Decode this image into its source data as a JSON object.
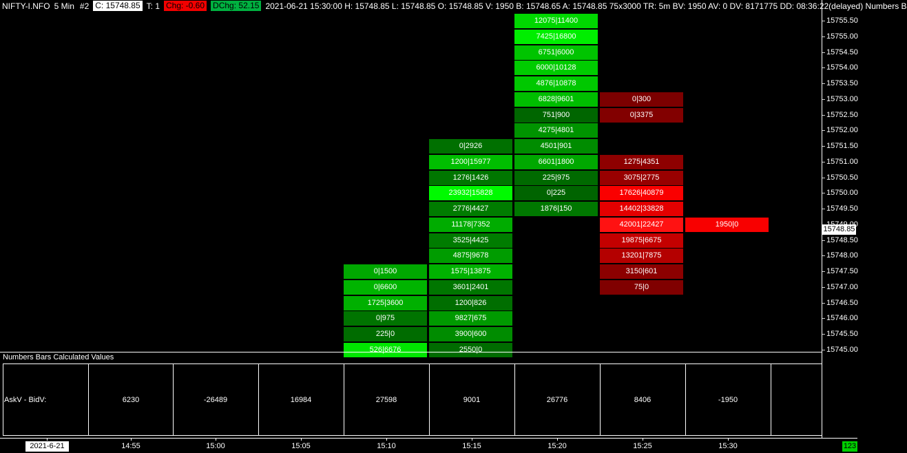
{
  "header": {
    "symbol": "NIFTY-I.NFO",
    "period": "5 Min",
    "chart_number": "#2",
    "close": "C: 15748.85",
    "trades": "T: 1",
    "change": "Chg: -0.60",
    "day_change": "DChg: 52.15",
    "info": "2021-06-21 15:30:00 H: 15748.85 L: 15748.85 O: 15748.85 V: 1950 B: 15748.65 A: 15748.85 75x3000 TR: 5m BV: 1950 AV: 0 DV: 8171775 DD: 08:36:22(delayed) Numbers B"
  },
  "colors": {
    "header_close_bg": "#ffffff",
    "header_change_bg": "#f20000",
    "header_day_change_bg": "#00b140",
    "badge_bg": "#00cf00",
    "up_bright": "#00fa00",
    "down_bright": "#fa0000"
  },
  "price_scale": {
    "labels": [
      "15755.50",
      "15755.00",
      "15754.50",
      "15754.00",
      "15753.50",
      "15753.00",
      "15752.50",
      "15752.00",
      "15751.50",
      "15751.00",
      "15750.50",
      "15750.00",
      "15749.50",
      "15749.00",
      "15748.50",
      "15748.00",
      "15747.50",
      "15747.00",
      "15746.50",
      "15746.00",
      "15745.50",
      "15745.00"
    ],
    "last_price": "15748.85"
  },
  "chart_data": {
    "type": "footprint-bid-ask",
    "value_format": "bidVolume|askVolume",
    "price_range": [
      "15745.00",
      "15755.50"
    ],
    "columns": [
      {
        "time": "15:10",
        "cells": [
          {
            "price": "15747.50",
            "value": "0|1500",
            "color": "#00a800"
          },
          {
            "price": "15747.00",
            "value": "0|6600",
            "color": "#00b400"
          },
          {
            "price": "15746.50",
            "value": "1725|3600",
            "color": "#00b000"
          },
          {
            "price": "15746.00",
            "value": "0|975",
            "color": "#007400"
          },
          {
            "price": "15745.50",
            "value": "225|0",
            "color": "#006c00"
          },
          {
            "price": "15745.00",
            "value": "526|6676",
            "color": "#00e600"
          }
        ]
      },
      {
        "time": "15:15",
        "cells": [
          {
            "price": "15751.50",
            "value": "0|2926",
            "color": "#007000"
          },
          {
            "price": "15751.00",
            "value": "1200|15977",
            "color": "#00be00"
          },
          {
            "price": "15750.50",
            "value": "1276|1426",
            "color": "#007600"
          },
          {
            "price": "15750.00",
            "value": "23932|15828",
            "color": "#00fa00"
          },
          {
            "price": "15749.50",
            "value": "2776|4427",
            "color": "#007c00"
          },
          {
            "price": "15749.00",
            "value": "11178|7352",
            "color": "#00ac00"
          },
          {
            "price": "15748.50",
            "value": "3525|4425",
            "color": "#007c00"
          },
          {
            "price": "15748.00",
            "value": "4875|9678",
            "color": "#009c00"
          },
          {
            "price": "15747.50",
            "value": "1575|13875",
            "color": "#00b200"
          },
          {
            "price": "15747.00",
            "value": "3601|2401",
            "color": "#007600"
          },
          {
            "price": "15746.50",
            "value": "1200|826",
            "color": "#006e00"
          },
          {
            "price": "15746.00",
            "value": "9827|675",
            "color": "#009a00"
          },
          {
            "price": "15745.50",
            "value": "3900|600",
            "color": "#008c00"
          },
          {
            "price": "15745.00",
            "value": "2550|0",
            "color": "#006c00"
          }
        ]
      },
      {
        "time": "15:20",
        "cells": [
          {
            "price": "15755.50",
            "value": "12075|11400",
            "color": "#00d800"
          },
          {
            "price": "15755.00",
            "value": "7425|16800",
            "color": "#00ee00"
          },
          {
            "price": "15754.50",
            "value": "6751|6000",
            "color": "#00c400"
          },
          {
            "price": "15754.00",
            "value": "6000|10128",
            "color": "#00cc00"
          },
          {
            "price": "15753.50",
            "value": "4876|10878",
            "color": "#00c800"
          },
          {
            "price": "15753.00",
            "value": "6828|9601",
            "color": "#00be00"
          },
          {
            "price": "15752.50",
            "value": "751|900",
            "color": "#006600"
          },
          {
            "price": "15752.00",
            "value": "4275|4801",
            "color": "#009400"
          },
          {
            "price": "15751.50",
            "value": "4501|901",
            "color": "#008c00"
          },
          {
            "price": "15751.00",
            "value": "6601|1800",
            "color": "#00a800"
          },
          {
            "price": "15750.50",
            "value": "225|975",
            "color": "#006a00"
          },
          {
            "price": "15750.00",
            "value": "0|225",
            "color": "#006400"
          },
          {
            "price": "15749.50",
            "value": "1876|150",
            "color": "#007800"
          }
        ]
      },
      {
        "time": "15:25",
        "cells": [
          {
            "price": "15753.00",
            "value": "0|300",
            "color": "#7c0000"
          },
          {
            "price": "15752.50",
            "value": "0|3375",
            "color": "#820000"
          },
          {
            "price": "15751.00",
            "value": "1275|4351",
            "color": "#8e0000"
          },
          {
            "price": "15750.50",
            "value": "3075|2775",
            "color": "#980000"
          },
          {
            "price": "15750.00",
            "value": "17626|40879",
            "color": "#fa0000"
          },
          {
            "price": "15749.50",
            "value": "14402|33828",
            "color": "#e40000"
          },
          {
            "price": "15749.00",
            "value": "42001|22427",
            "color": "#ff1212"
          },
          {
            "price": "15748.50",
            "value": "19875|6675",
            "color": "#c40000"
          },
          {
            "price": "15748.00",
            "value": "13201|7875",
            "color": "#b40000"
          },
          {
            "price": "15747.50",
            "value": "3150|601",
            "color": "#8c0000"
          },
          {
            "price": "15747.00",
            "value": "75|0",
            "color": "#800000"
          }
        ]
      },
      {
        "time": "15:30",
        "cells": [
          {
            "price": "15749.00",
            "value": "1950|0",
            "color": "#f80000"
          }
        ]
      }
    ]
  },
  "bottom_panel": {
    "title": "Numbers Bars Calculated Values",
    "row_label": "AskV - BidV:",
    "values": [
      "6230",
      "-26489",
      "16984",
      "27598",
      "9001",
      "26776",
      "8406",
      "-1950"
    ]
  },
  "time_axis": {
    "date": "2021-6-21",
    "labels": [
      "14:55",
      "15:00",
      "15:05",
      "15:10",
      "15:15",
      "15:20",
      "15:25",
      "15:30"
    ],
    "corner_badge": "123"
  }
}
